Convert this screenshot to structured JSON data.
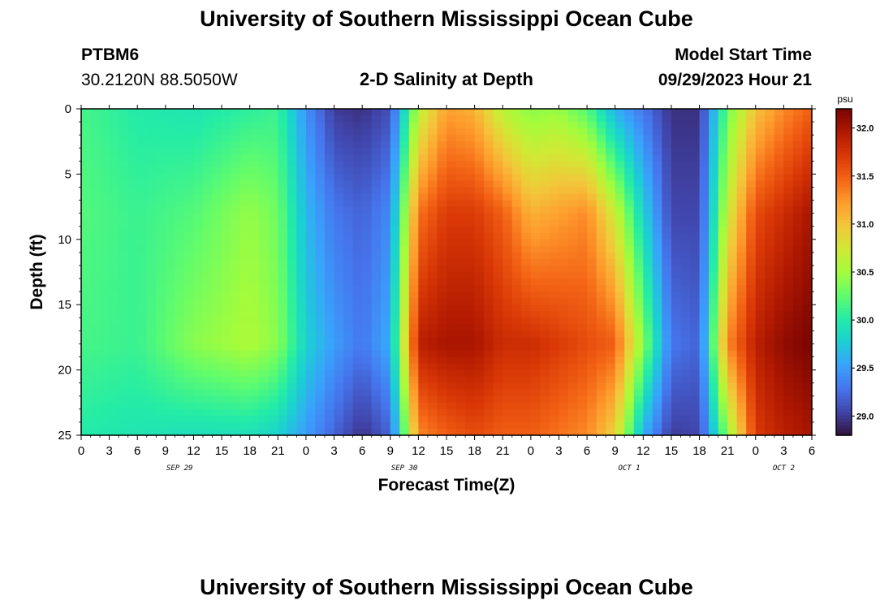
{
  "title_top": "University of Southern Mississippi Ocean Cube",
  "title_bottom": "University of Southern Mississippi Ocean Cube",
  "station": {
    "name": "PTBM6",
    "coords": "30.2120N  88.5050W"
  },
  "model": {
    "label": "Model Start Time",
    "value": "09/29/2023 Hour 21"
  },
  "chart_data": {
    "type": "heatmap",
    "title": "2-D Salinity at Depth",
    "xlabel": "Forecast Time(Z)",
    "ylabel": "Depth (ft)",
    "x_ticks": [
      "0",
      "3",
      "6",
      "9",
      "12",
      "15",
      "18",
      "21",
      "0",
      "3",
      "6",
      "9",
      "12",
      "15",
      "18",
      "21",
      "0",
      "3",
      "6",
      "9",
      "12",
      "15",
      "18",
      "21",
      "0",
      "3",
      "6"
    ],
    "x_range_hours": [
      0,
      78
    ],
    "day_labels": [
      {
        "text": "SEP 29",
        "hour": 10.5
      },
      {
        "text": "SEP 30",
        "hour": 34.5
      },
      {
        "text": "OCT 1",
        "hour": 58.5
      },
      {
        "text": "OCT 2",
        "hour": 75
      }
    ],
    "y_ticks": [
      "0",
      "5",
      "10",
      "15",
      "20",
      "25"
    ],
    "ylim": [
      0,
      25
    ],
    "y_inverted": true,
    "colorbar": {
      "unit": "psu",
      "min": 28.8,
      "max": 32.2,
      "tick_values": [
        29.0,
        29.5,
        30.0,
        30.5,
        31.0,
        31.5,
        32.0
      ],
      "tick_labels": [
        "29.0",
        "29.5",
        "30.0",
        "30.5",
        "31.0",
        "31.5",
        "32.0"
      ]
    },
    "colormap": [
      "#30123b",
      "#4145ab",
      "#4675ed",
      "#39a2fc",
      "#1bcfd4",
      "#24eca6",
      "#61fc6c",
      "#a4fc3b",
      "#d1e834",
      "#f3c63a",
      "#fe9b2d",
      "#f36315",
      "#d93806",
      "#b11901",
      "#7a0402"
    ],
    "grid_resolution": {
      "time_step_hours": 1,
      "depth_step_ft": 0.5
    },
    "salinity_profiles": [
      {
        "hour": 0,
        "surface": 30.15,
        "mid": 30.2,
        "deep": 30.15,
        "bottom": 30.0
      },
      {
        "hour": 6,
        "surface": 30.0,
        "mid": 30.1,
        "deep": 30.1,
        "bottom": 29.95
      },
      {
        "hour": 12,
        "surface": 29.95,
        "mid": 30.2,
        "deep": 30.4,
        "bottom": 29.9
      },
      {
        "hour": 18,
        "surface": 30.05,
        "mid": 30.45,
        "deep": 30.55,
        "bottom": 29.9
      },
      {
        "hour": 21,
        "surface": 30.1,
        "mid": 30.3,
        "deep": 30.4,
        "bottom": 29.8
      },
      {
        "hour": 24,
        "surface": 29.45,
        "mid": 29.65,
        "deep": 29.8,
        "bottom": 29.5
      },
      {
        "hour": 27,
        "surface": 29.0,
        "mid": 29.3,
        "deep": 29.5,
        "bottom": 29.2
      },
      {
        "hour": 30,
        "surface": 28.95,
        "mid": 29.2,
        "deep": 29.3,
        "bottom": 28.95
      },
      {
        "hour": 33,
        "surface": 29.1,
        "mid": 29.4,
        "deep": 29.6,
        "bottom": 29.2
      },
      {
        "hour": 36,
        "surface": 30.6,
        "mid": 31.4,
        "deep": 31.9,
        "bottom": 31.3
      },
      {
        "hour": 39,
        "surface": 31.2,
        "mid": 31.7,
        "deep": 32.0,
        "bottom": 31.5
      },
      {
        "hour": 42,
        "surface": 31.1,
        "mid": 31.7,
        "deep": 32.0,
        "bottom": 31.6
      },
      {
        "hour": 45,
        "surface": 30.6,
        "mid": 31.5,
        "deep": 31.8,
        "bottom": 31.5
      },
      {
        "hour": 48,
        "surface": 30.4,
        "mid": 31.1,
        "deep": 31.8,
        "bottom": 31.5
      },
      {
        "hour": 51,
        "surface": 30.45,
        "mid": 31.2,
        "deep": 31.7,
        "bottom": 31.4
      },
      {
        "hour": 54,
        "surface": 30.2,
        "mid": 31.3,
        "deep": 31.6,
        "bottom": 31.3
      },
      {
        "hour": 57,
        "surface": 29.6,
        "mid": 30.7,
        "deep": 31.5,
        "bottom": 30.9
      },
      {
        "hour": 60,
        "surface": 29.3,
        "mid": 29.8,
        "deep": 30.4,
        "bottom": 29.6
      },
      {
        "hour": 63,
        "surface": 28.95,
        "mid": 29.05,
        "deep": 29.3,
        "bottom": 29.0
      },
      {
        "hour": 66,
        "surface": 28.95,
        "mid": 29.05,
        "deep": 29.2,
        "bottom": 29.05
      },
      {
        "hour": 69,
        "surface": 30.3,
        "mid": 30.7,
        "deep": 31.3,
        "bottom": 30.4
      },
      {
        "hour": 72,
        "surface": 31.0,
        "mid": 31.6,
        "deep": 31.9,
        "bottom": 31.7
      },
      {
        "hour": 75,
        "surface": 31.3,
        "mid": 31.8,
        "deep": 32.1,
        "bottom": 31.9
      },
      {
        "hour": 78,
        "surface": 31.5,
        "mid": 32.0,
        "deep": 32.2,
        "bottom": 32.0
      }
    ]
  }
}
